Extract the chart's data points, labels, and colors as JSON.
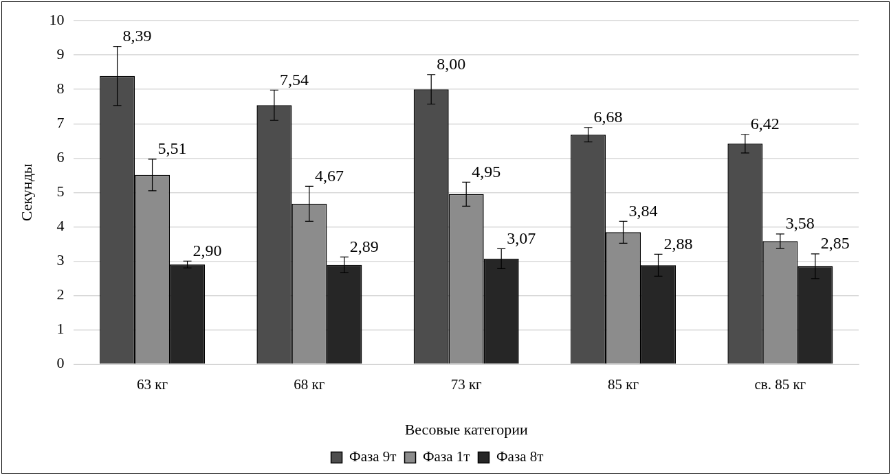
{
  "chart_data": {
    "type": "bar",
    "xlabel": "Весовые категории",
    "ylabel": "Секунды",
    "categories": [
      "63 кг",
      "68 кг",
      "73 кг",
      "85 кг",
      "св. 85 кг"
    ],
    "series": [
      {
        "name": "Фаза 9т",
        "color": "#4d4d4d",
        "values": [
          8.39,
          7.54,
          8.0,
          6.68,
          6.42
        ],
        "errors": [
          0.86,
          0.44,
          0.43,
          0.21,
          0.27
        ],
        "value_labels": [
          "8,39",
          "7,54",
          "8,00",
          "6,68",
          "6,42"
        ]
      },
      {
        "name": "Фаза 1т",
        "color": "#8c8c8c",
        "values": [
          5.51,
          4.67,
          4.95,
          3.84,
          3.58
        ],
        "errors": [
          0.46,
          0.51,
          0.35,
          0.32,
          0.21
        ],
        "value_labels": [
          "5,51",
          "4,67",
          "4,95",
          "3,84",
          "3,58"
        ]
      },
      {
        "name": "Фаза 8т",
        "color": "#262626",
        "values": [
          2.9,
          2.89,
          3.07,
          2.88,
          2.85
        ],
        "errors": [
          0.1,
          0.23,
          0.29,
          0.32,
          0.36
        ],
        "value_labels": [
          "2,90",
          "2,89",
          "3,07",
          "2,88",
          "2,85"
        ]
      }
    ],
    "ylim": [
      0,
      10
    ],
    "yticks": [
      0,
      1,
      2,
      3,
      4,
      5,
      6,
      7,
      8,
      9,
      10
    ],
    "grid": "y",
    "legend": "bottom"
  }
}
